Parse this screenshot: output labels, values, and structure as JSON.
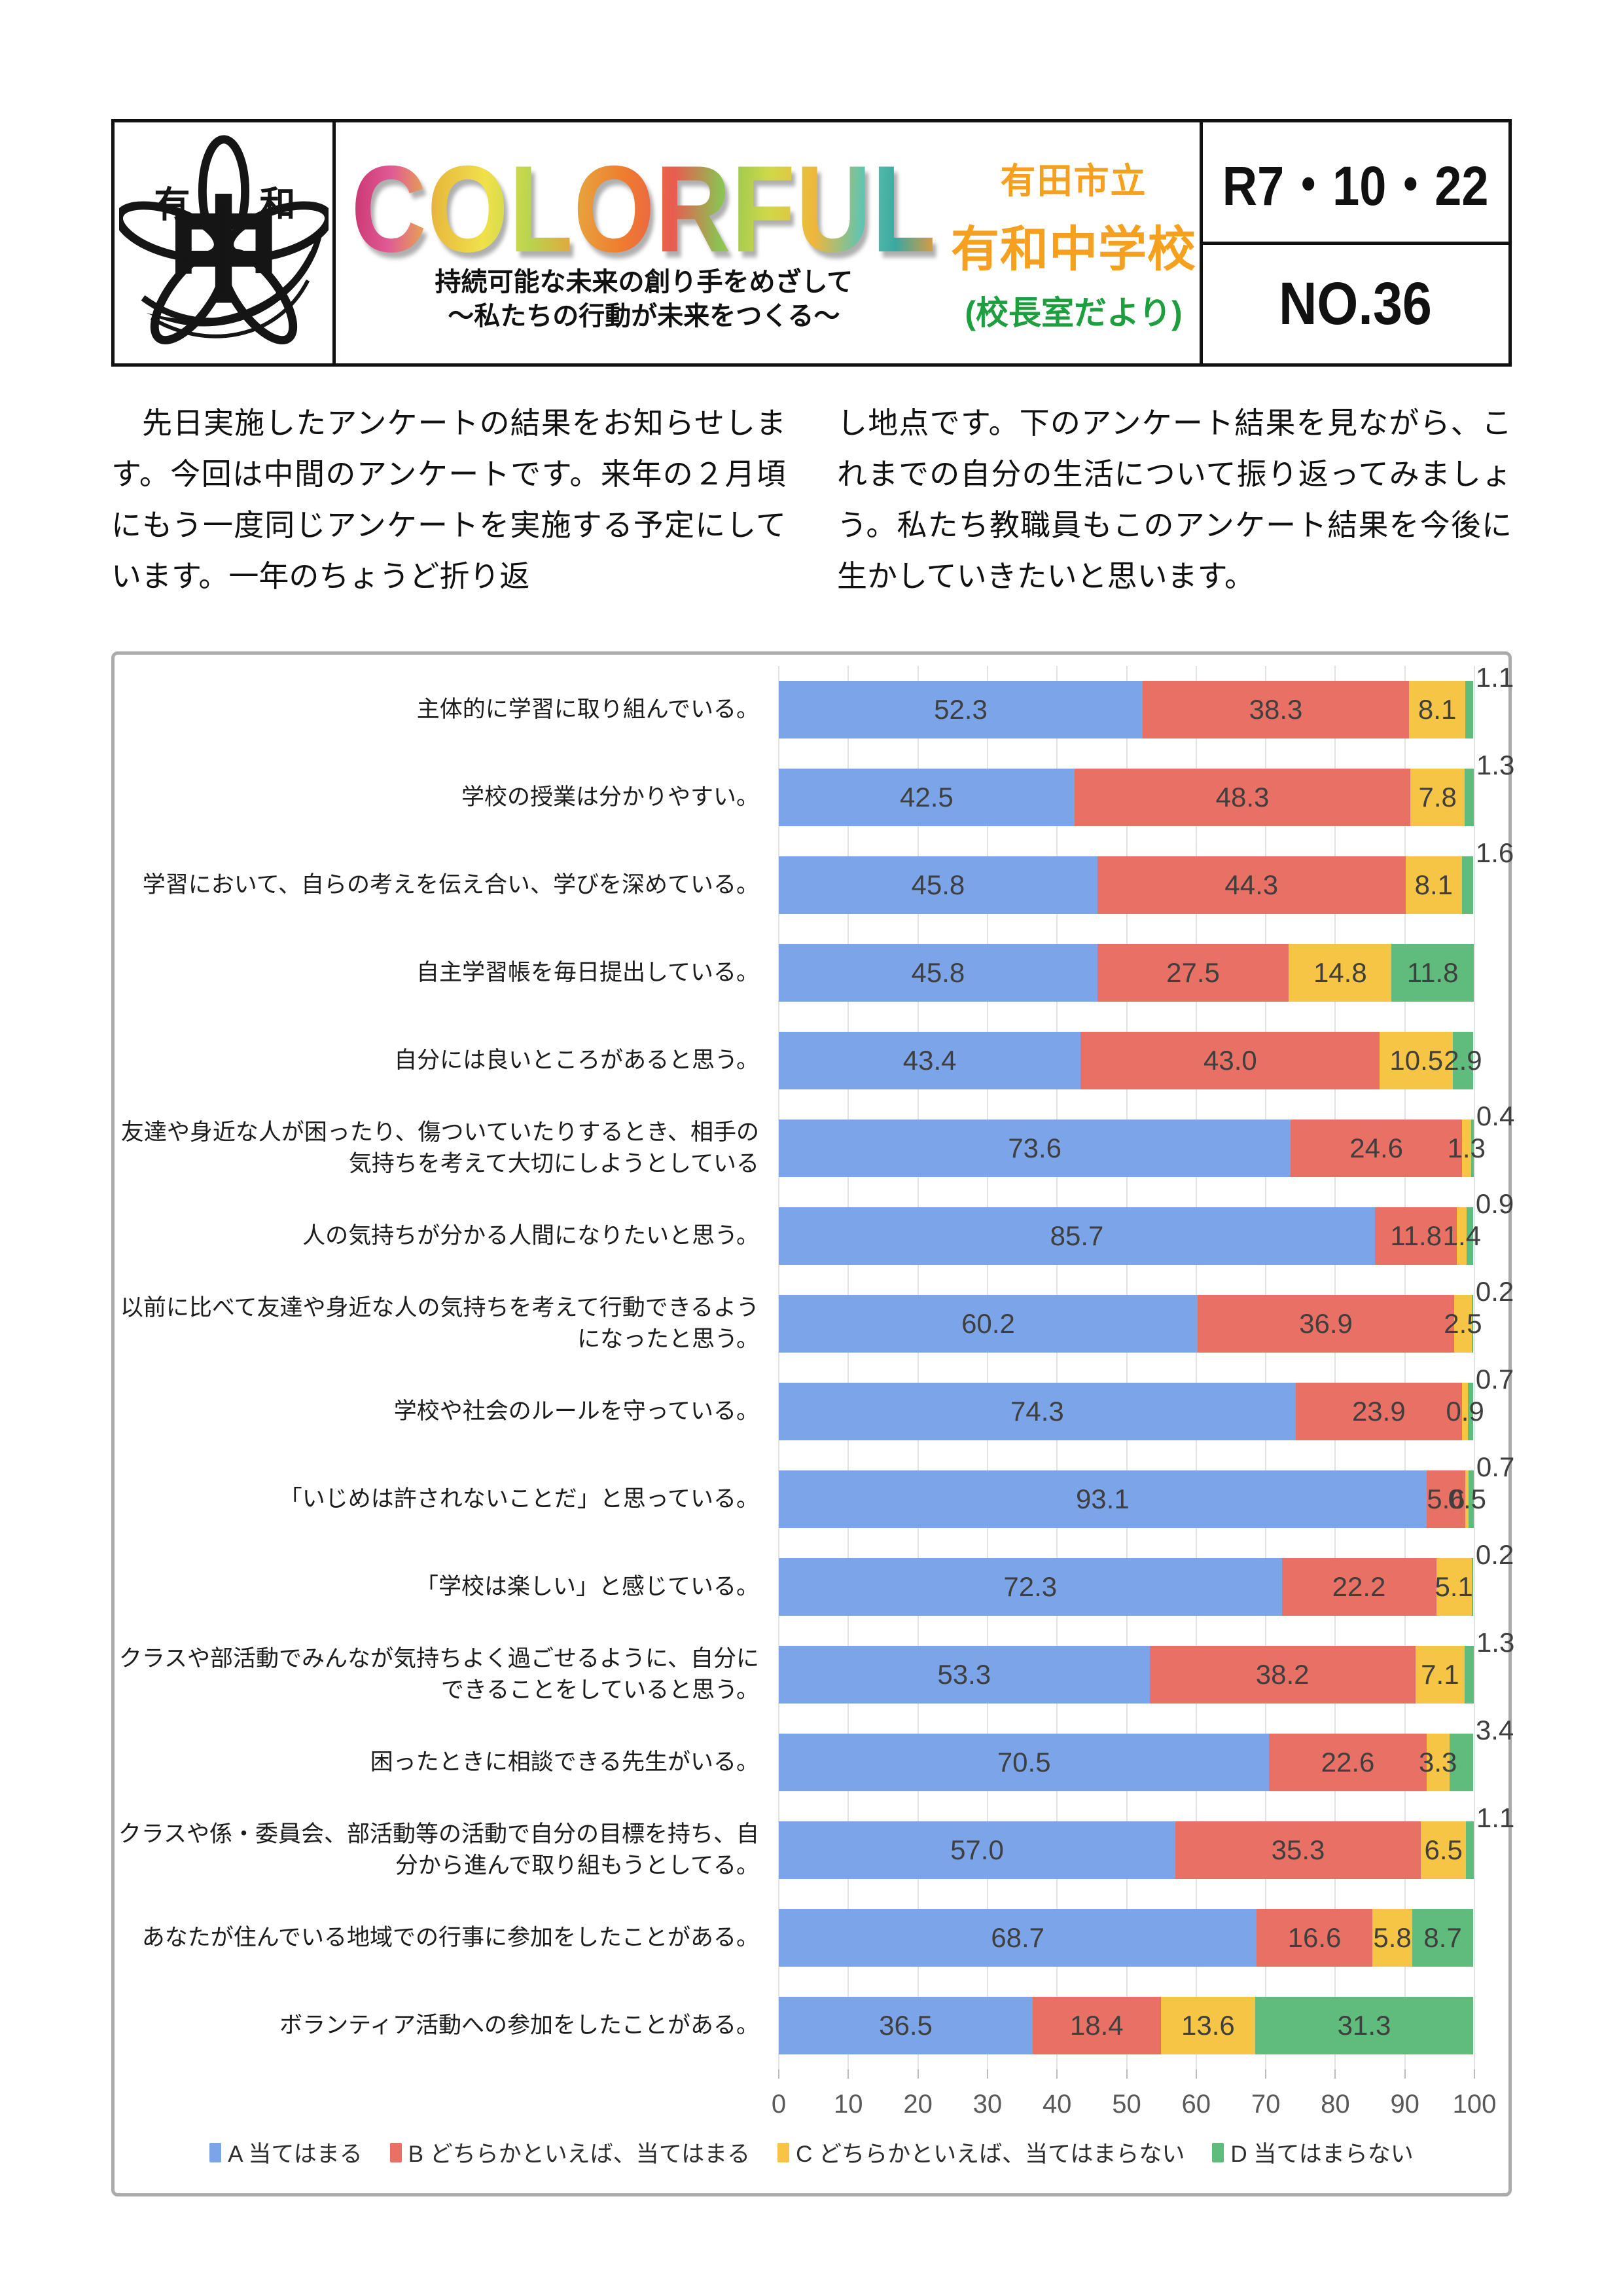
{
  "header": {
    "newsletter_title": "COLORFUL",
    "subtitle_line1": "持続可能な未来の創り手をめざして",
    "subtitle_line2": "～私たちの行動が未来をつくる～",
    "school_city": "有田市立",
    "school_name": "有和中学校",
    "school_note": "(校長室だより)",
    "date": "R7・10・22",
    "issue_no": "NO.36",
    "logo": {
      "top_left_char": "有",
      "top_right_char": "和",
      "center_char": "中"
    },
    "colors": {
      "school_orange": "#F5A01E",
      "note_green": "#1D9E3F"
    }
  },
  "intro": {
    "left_column": "　先日実施したアンケートの結果をお知らせします。今回は中間のアンケートです。来年の２月頃にもう一度同じアンケートを実施する予定にしています。一年のちょうど折り返",
    "right_column": "し地点です。下のアンケート結果を見ながら、これまでの自分の生活について振り返ってみましょう。私たち教職員もこのアンケート結果を今後に生かしていきたいと思います。"
  },
  "chart_data": {
    "type": "bar",
    "orientation": "horizontal",
    "stacked": true,
    "xlim": [
      0,
      100
    ],
    "x_ticks": [
      0,
      10,
      20,
      30,
      40,
      50,
      60,
      70,
      80,
      90,
      100
    ],
    "grid": true,
    "legend_position": "bottom",
    "categories": [
      "主体的に学習に取り組んでいる。",
      "学校の授業は分かりやすい。",
      "学習において、自らの考えを伝え合い、学びを深めている。",
      "自主学習帳を毎日提出している。",
      "自分には良いところがあると思う。",
      "友達や身近な人が困ったり、傷ついていたりするとき、相手の気持ちを考えて大切にしようとしている",
      "人の気持ちが分かる人間になりたいと思う。",
      "以前に比べて友達や身近な人の気持ちを考えて行動できるようになったと思う。",
      "学校や社会のルールを守っている。",
      "「いじめは許されないことだ」と思っている。",
      "「学校は楽しい」と感じている。",
      "クラスや部活動でみんなが気持ちよく過ごせるように、自分にできることをしていると思う。",
      "困ったときに相談できる先生がいる。",
      "クラスや係・委員会、部活動等の活動で自分の目標を持ち、自分から進んで取り組もうとしてる。",
      "あなたが住んでいる地域での行事に参加をしたことがある。",
      "ボランティア活動への参加をしたことがある。"
    ],
    "series": [
      {
        "key": "a",
        "name": "A 当てはまる",
        "color": "#7CA5E9",
        "values": [
          52.3,
          42.5,
          45.8,
          45.8,
          43.4,
          73.6,
          85.7,
          60.2,
          74.3,
          93.1,
          72.3,
          53.3,
          70.5,
          57.0,
          68.7,
          36.5
        ]
      },
      {
        "key": "b",
        "name": "B どちらかといえば、当てはまる",
        "color": "#E97064",
        "values": [
          38.3,
          48.3,
          44.3,
          27.5,
          43.0,
          24.6,
          11.8,
          36.9,
          23.9,
          5.6,
          22.2,
          38.2,
          22.6,
          35.3,
          16.6,
          18.4
        ]
      },
      {
        "key": "c",
        "name": "C どちらかといえば、当てはまらない",
        "color": "#F6C545",
        "values": [
          8.1,
          7.8,
          8.1,
          14.8,
          10.5,
          1.3,
          1.4,
          2.5,
          0.9,
          0.5,
          5.1,
          7.1,
          3.3,
          6.5,
          5.8,
          13.6
        ]
      },
      {
        "key": "d",
        "name": "D 当てはまらない",
        "color": "#5FBC7C",
        "values": [
          1.1,
          1.3,
          1.6,
          11.8,
          2.9,
          0.4,
          0.9,
          0.2,
          0.7,
          0.7,
          0.2,
          1.3,
          3.4,
          1.1,
          8.7,
          31.3
        ]
      }
    ]
  }
}
